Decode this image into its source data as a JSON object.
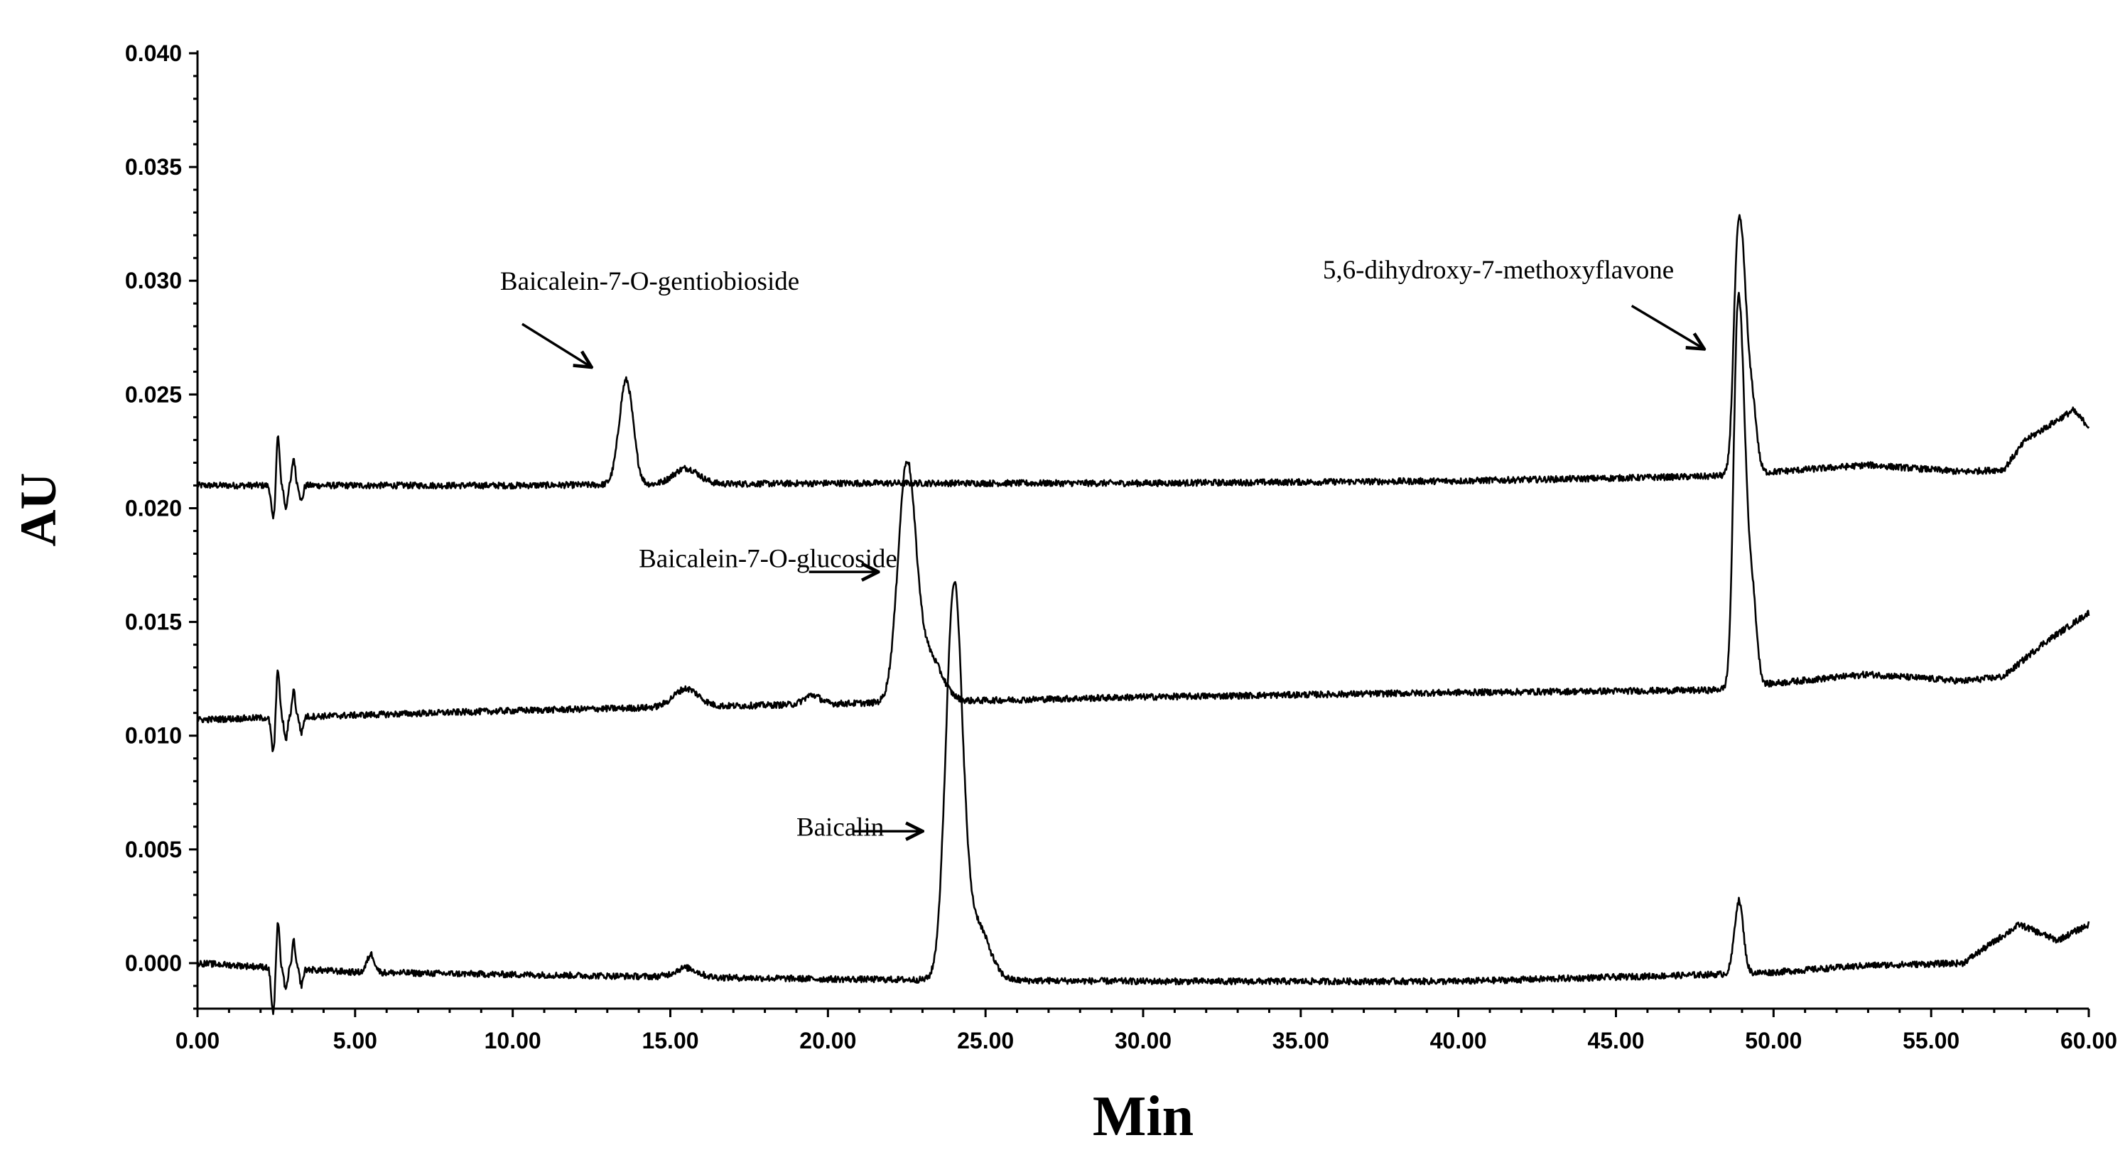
{
  "chart_data": {
    "type": "line",
    "title": "",
    "xlabel": "Min",
    "ylabel": "AU",
    "xlim": [
      0,
      60
    ],
    "ylim": [
      -0.002,
      0.04
    ],
    "x_ticks": [
      0,
      5,
      10,
      15,
      20,
      25,
      30,
      35,
      40,
      45,
      50,
      55,
      60
    ],
    "x_tick_labels": [
      "0.00",
      "5.00",
      "10.00",
      "15.00",
      "20.00",
      "25.00",
      "30.00",
      "35.00",
      "40.00",
      "45.00",
      "50.00",
      "55.00",
      "60.00"
    ],
    "y_ticks": [
      0,
      0.005,
      0.01,
      0.015,
      0.02,
      0.025,
      0.03,
      0.035,
      0.04
    ],
    "y_tick_labels": [
      "0.000",
      "0.005",
      "0.010",
      "0.015",
      "0.020",
      "0.025",
      "0.030",
      "0.035",
      "0.040"
    ],
    "grid": false,
    "legend": "none",
    "series": [
      {
        "baseline": [
          [
            0,
            0.021
          ],
          [
            10,
            0.021
          ],
          [
            20,
            0.0211
          ],
          [
            30,
            0.0211
          ],
          [
            40,
            0.0212
          ],
          [
            48,
            0.0214
          ],
          [
            50,
            0.0216
          ],
          [
            53,
            0.0219
          ],
          [
            56,
            0.0216
          ],
          [
            57.3,
            0.0217
          ],
          [
            58,
            0.023
          ],
          [
            59.5,
            0.0243
          ],
          [
            60,
            0.0236
          ]
        ],
        "peaks": [
          [
            2.4,
            -0.0015,
            0.06
          ],
          [
            2.55,
            0.0022,
            0.05
          ],
          [
            2.8,
            -0.001,
            0.05
          ],
          [
            3.05,
            0.0012,
            0.05
          ],
          [
            3.3,
            -0.0007,
            0.05
          ],
          [
            13.6,
            0.0046,
            0.22
          ],
          [
            15.5,
            0.0007,
            0.4
          ],
          [
            48.85,
            0.009,
            0.13
          ],
          [
            49.05,
            0.006,
            0.12
          ],
          [
            49.3,
            0.0035,
            0.15
          ]
        ]
      },
      {
        "baseline": [
          [
            0,
            0.0107
          ],
          [
            10,
            0.0111
          ],
          [
            20,
            0.0114
          ],
          [
            30,
            0.0117
          ],
          [
            40,
            0.0119
          ],
          [
            48,
            0.012
          ],
          [
            50,
            0.0123
          ],
          [
            53,
            0.0127
          ],
          [
            56,
            0.0124
          ],
          [
            57.3,
            0.0126
          ],
          [
            58.5,
            0.014
          ],
          [
            60,
            0.0154
          ]
        ],
        "peaks": [
          [
            2.4,
            -0.0015,
            0.06
          ],
          [
            2.55,
            0.0022,
            0.05
          ],
          [
            2.8,
            -0.001,
            0.05
          ],
          [
            3.05,
            0.0012,
            0.05
          ],
          [
            3.3,
            -0.0007,
            0.05
          ],
          [
            15.5,
            0.0008,
            0.4
          ],
          [
            19.5,
            0.0004,
            0.25
          ],
          [
            22.5,
            0.0102,
            0.28
          ],
          [
            23.2,
            0.002,
            0.4
          ],
          [
            48.85,
            0.0148,
            0.13
          ],
          [
            49.05,
            0.0075,
            0.12
          ],
          [
            49.3,
            0.0045,
            0.15
          ]
        ]
      },
      {
        "baseline": [
          [
            0,
            0.0
          ],
          [
            5,
            -0.0004
          ],
          [
            10,
            -0.0005
          ],
          [
            20,
            -0.0007
          ],
          [
            30,
            -0.0008
          ],
          [
            40,
            -0.0008
          ],
          [
            48,
            -0.0005
          ],
          [
            50,
            -0.0004
          ],
          [
            53,
            -0.0001
          ],
          [
            56,
            0.0
          ],
          [
            57.8,
            0.0017
          ],
          [
            59,
            0.001
          ],
          [
            60,
            0.0017
          ]
        ],
        "peaks": [
          [
            2.4,
            -0.002,
            0.06
          ],
          [
            2.55,
            0.002,
            0.05
          ],
          [
            2.8,
            -0.001,
            0.05
          ],
          [
            3.05,
            0.0012,
            0.05
          ],
          [
            3.3,
            -0.0007,
            0.05
          ],
          [
            5.5,
            0.0008,
            0.12
          ],
          [
            15.5,
            0.0004,
            0.35
          ],
          [
            24.0,
            0.017,
            0.26
          ],
          [
            24.7,
            0.0025,
            0.4
          ],
          [
            48.9,
            0.0032,
            0.14
          ]
        ]
      }
    ],
    "annotations": [
      {
        "text": "Baicalein-7-O-gentiobioside",
        "x": 9.6,
        "y": 0.0296,
        "arrow_from": [
          10.3,
          0.0281
        ],
        "arrow_to": [
          12.5,
          0.0262
        ]
      },
      {
        "text": "Baicalein-7-O-glucoside",
        "x": 14.0,
        "y": 0.0174,
        "arrow_from": [
          19.4,
          0.0172
        ],
        "arrow_to": [
          21.6,
          0.0172
        ]
      },
      {
        "text": "Baicalin",
        "x": 19.0,
        "y": 0.0056,
        "arrow_from": [
          20.8,
          0.0058
        ],
        "arrow_to": [
          23.0,
          0.0058
        ]
      },
      {
        "text": "5,6-dihydroxy-7-methoxyflavone",
        "x": 35.7,
        "y": 0.0301,
        "arrow_from": [
          45.5,
          0.0289
        ],
        "arrow_to": [
          47.8,
          0.027
        ]
      }
    ]
  }
}
